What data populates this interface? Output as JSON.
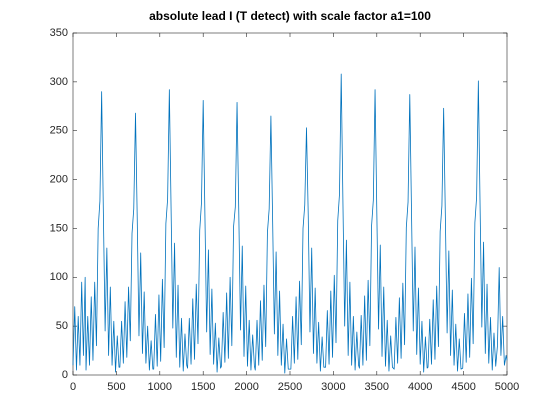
{
  "chart_data": {
    "type": "line",
    "title": "absolute lead I (T detect) with scale factor a1=100",
    "x": [
      0,
      20,
      40,
      60,
      80,
      100,
      120,
      140,
      150,
      170,
      190,
      210,
      230,
      250,
      270,
      290,
      310,
      330,
      350,
      370,
      390,
      410,
      430,
      450,
      470,
      490,
      510,
      530,
      540,
      560,
      580,
      600,
      620,
      640,
      660,
      680,
      700,
      720,
      740,
      760,
      780,
      800,
      820,
      840,
      860,
      880,
      900,
      920,
      930,
      950,
      970,
      990,
      1010,
      1030,
      1050,
      1070,
      1090,
      1110,
      1130,
      1150,
      1170,
      1190,
      1210,
      1230,
      1250,
      1270,
      1290,
      1310,
      1320,
      1340,
      1360,
      1380,
      1400,
      1420,
      1440,
      1460,
      1480,
      1500,
      1520,
      1540,
      1560,
      1580,
      1600,
      1620,
      1640,
      1660,
      1680,
      1700,
      1710,
      1730,
      1750,
      1770,
      1790,
      1810,
      1830,
      1850,
      1870,
      1890,
      1910,
      1930,
      1950,
      1970,
      1990,
      2010,
      2030,
      2050,
      2070,
      2090,
      2100,
      2120,
      2140,
      2160,
      2180,
      2200,
      2220,
      2240,
      2260,
      2280,
      2300,
      2320,
      2340,
      2360,
      2380,
      2400,
      2420,
      2440,
      2460,
      2480,
      2510,
      2530,
      2550,
      2570,
      2590,
      2610,
      2630,
      2650,
      2670,
      2690,
      2710,
      2730,
      2750,
      2770,
      2790,
      2810,
      2830,
      2850,
      2870,
      2890,
      2910,
      2930,
      2950,
      2970,
      2990,
      3010,
      3030,
      3050,
      3070,
      3090,
      3110,
      3130,
      3150,
      3170,
      3190,
      3210,
      3230,
      3250,
      3270,
      3290,
      3300,
      3320,
      3340,
      3360,
      3380,
      3400,
      3420,
      3440,
      3460,
      3480,
      3500,
      3520,
      3540,
      3560,
      3580,
      3600,
      3620,
      3640,
      3660,
      3680,
      3700,
      3720,
      3740,
      3760,
      3780,
      3800,
      3820,
      3840,
      3860,
      3880,
      3900,
      3920,
      3940,
      3960,
      3980,
      4000,
      4020,
      4040,
      4060,
      4080,
      4090,
      4110,
      4130,
      4150,
      4170,
      4190,
      4210,
      4230,
      4250,
      4270,
      4290,
      4310,
      4330,
      4350,
      4370,
      4390,
      4410,
      4430,
      4450,
      4470,
      4490,
      4510,
      4530,
      4550,
      4570,
      4590,
      4610,
      4630,
      4650,
      4670,
      4690,
      4710,
      4730,
      4750,
      4770,
      4790,
      4810,
      4830,
      4850,
      4870,
      4890,
      4910,
      4930,
      4950,
      4970,
      4990,
      5000
    ],
    "series": [
      {
        "color": "#0072bd",
        "values": [
          10,
          70,
          5,
          60,
          10,
          95,
          20,
          100,
          5,
          60,
          10,
          80,
          15,
          95,
          30,
          150,
          178,
          290,
          165,
          45,
          130,
          20,
          90,
          10,
          55,
          3,
          40,
          8,
          8,
          55,
          12,
          75,
          18,
          90,
          35,
          145,
          170,
          268,
          160,
          40,
          125,
          22,
          85,
          12,
          50,
          5,
          35,
          6,
          6,
          62,
          9,
          82,
          14,
          98,
          28,
          155,
          180,
          292,
          170,
          48,
          135,
          18,
          92,
          8,
          58,
          4,
          42,
          10,
          7,
          58,
          11,
          78,
          16,
          93,
          32,
          148,
          176,
          281,
          162,
          44,
          128,
          21,
          88,
          11,
          53,
          3,
          38,
          7,
          9,
          64,
          13,
          84,
          17,
          100,
          30,
          152,
          172,
          279,
          166,
          46,
          132,
          19,
          91,
          9,
          56,
          5,
          41,
          9,
          5,
          56,
          10,
          76,
          15,
          92,
          29,
          146,
          170,
          265,
          158,
          42,
          126,
          20,
          86,
          10,
          52,
          2,
          37,
          6,
          6,
          60,
          12,
          80,
          16,
          96,
          31,
          150,
          174,
          253,
          164,
          44,
          130,
          22,
          89,
          12,
          54,
          4,
          39,
          8,
          8,
          66,
          11,
          86,
          18,
          102,
          33,
          158,
          185,
          308,
          175,
          50,
          138,
          20,
          95,
          10,
          60,
          5,
          44,
          10,
          7,
          61,
          10,
          81,
          15,
          97,
          30,
          153,
          179,
          292,
          168,
          47,
          133,
          19,
          90,
          9,
          56,
          4,
          40,
          8,
          6,
          59,
          12,
          79,
          17,
          94,
          31,
          151,
          177,
          287,
          166,
          45,
          131,
          21,
          89,
          11,
          55,
          3,
          39,
          7,
          8,
          57,
          11,
          77,
          16,
          91,
          29,
          147,
          173,
          273,
          161,
          43,
          127,
          20,
          87,
          10,
          52,
          4,
          37,
          6,
          7,
          63,
          13,
          83,
          18,
          99,
          32,
          156,
          182,
          301,
          172,
          49,
          136,
          22,
          93,
          12,
          59,
          5,
          43,
          9,
          30,
          110,
          20,
          60,
          10,
          20,
          15
        ]
      }
    ],
    "xlim": [
      0,
      5000
    ],
    "xticks": [
      0,
      500,
      1000,
      1500,
      2000,
      2500,
      3000,
      3500,
      4000,
      4500,
      5000
    ],
    "ylim": [
      0,
      350
    ],
    "yticks": [
      0,
      50,
      100,
      150,
      200,
      250,
      300,
      350
    ]
  }
}
